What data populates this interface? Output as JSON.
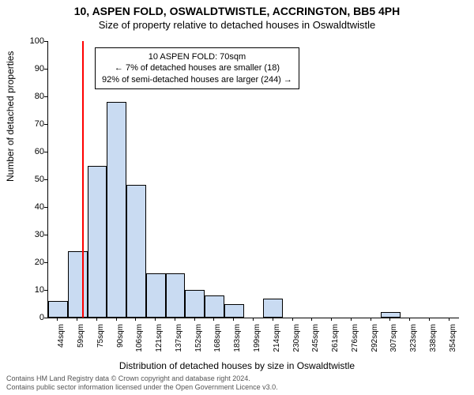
{
  "title": "10, ASPEN FOLD, OSWALDTWISTLE, ACCRINGTON, BB5 4PH",
  "subtitle": "Size of property relative to detached houses in Oswaldtwistle",
  "ylabel": "Number of detached properties",
  "xlabel": "Distribution of detached houses by size in Oswaldtwistle",
  "chart": {
    "type": "histogram",
    "ylim": [
      0,
      100
    ],
    "ytick_step": 10,
    "bar_fill": "#c9dbf2",
    "bar_stroke": "#000000",
    "background": "#ffffff",
    "ref_line_color": "#ff0000",
    "ref_line_x_index": 1.75,
    "categories": [
      "44sqm",
      "59sqm",
      "75sqm",
      "90sqm",
      "106sqm",
      "121sqm",
      "137sqm",
      "152sqm",
      "168sqm",
      "183sqm",
      "199sqm",
      "214sqm",
      "230sqm",
      "245sqm",
      "261sqm",
      "276sqm",
      "292sqm",
      "307sqm",
      "323sqm",
      "338sqm",
      "354sqm"
    ],
    "values": [
      6,
      24,
      55,
      78,
      48,
      16,
      16,
      10,
      8,
      5,
      0,
      7,
      0,
      0,
      0,
      0,
      0,
      2,
      0,
      0,
      0
    ]
  },
  "annotation": {
    "line1": "10 ASPEN FOLD: 70sqm",
    "line2": "← 7% of detached houses are smaller (18)",
    "line3": "92% of semi-detached houses are larger (244) →"
  },
  "attribution": {
    "line1": "Contains HM Land Registry data © Crown copyright and database right 2024.",
    "line2": "Contains public sector information licensed under the Open Government Licence v3.0."
  }
}
